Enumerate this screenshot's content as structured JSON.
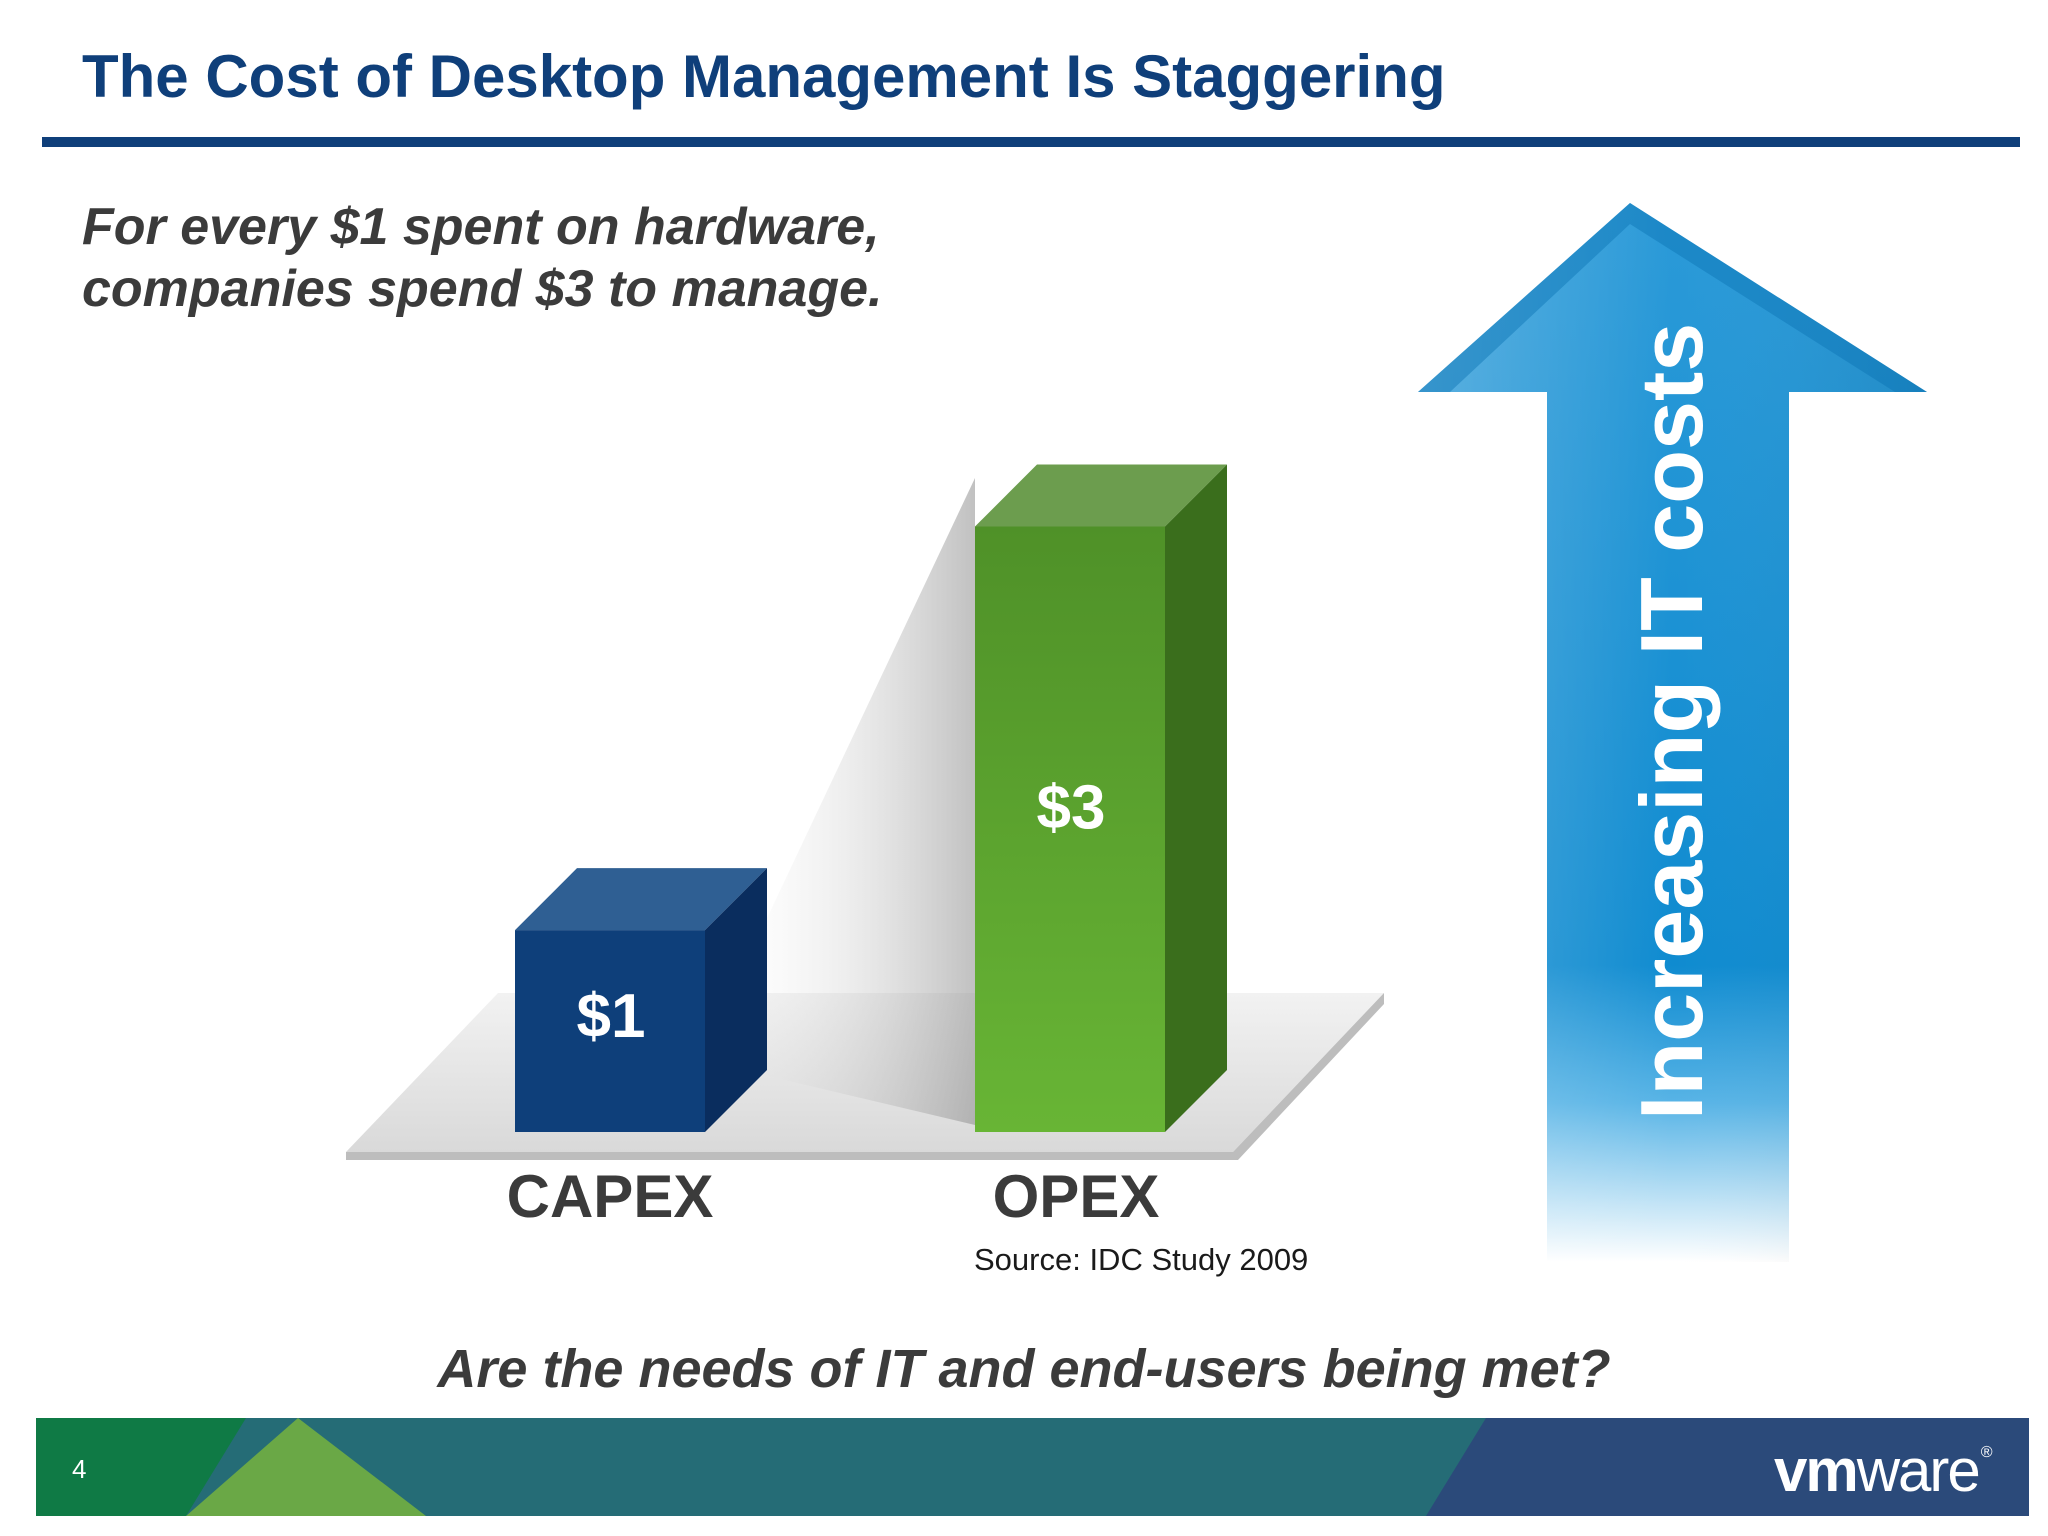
{
  "title": "The Cost of Desktop Management Is Staggering",
  "subtitle_lines": [
    "For every $1 spent on hardware,",
    "companies spend $3 to manage."
  ],
  "chart_data": {
    "type": "bar",
    "categories": [
      "CAPEX",
      "OPEX"
    ],
    "values": [
      1,
      3
    ],
    "data_labels": [
      "$1",
      "$3"
    ],
    "title": "",
    "xlabel": "",
    "ylabel": "",
    "ylim": [
      0,
      3.3
    ],
    "grid": false,
    "colors": [
      "#0e3f7a",
      "#5aa833"
    ]
  },
  "source": "Source: IDC Study 2009",
  "arrow_text": "Increasing IT costs",
  "question": "Are the needs of IT and end-users being met?",
  "footer": {
    "slide_number": "4",
    "logo_bold": "vm",
    "logo_light": "ware",
    "logo_mark": "®"
  },
  "colors": {
    "title": "#0f3f7a",
    "arrow": "#1a90d0",
    "footer": "#256c76"
  }
}
